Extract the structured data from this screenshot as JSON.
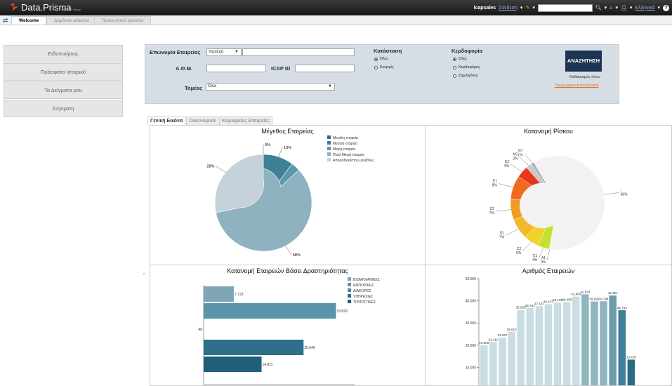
{
  "topbar": {
    "brand": "Data.Prisma",
    "brand_sub": "by ICAP Group",
    "user": "icapsales",
    "login_link": "Σύνδεση",
    "language_link": "Ελληνικά"
  },
  "page_tabs": [
    "Welcome",
    "Δημόσιοι φάκελοι",
    "Προσωπικοί φάκελοι"
  ],
  "sidebar": {
    "items": [
      {
        "label": "Ειδοποιήσεις"
      },
      {
        "label": "Πρόσφατο Ιστορικό"
      },
      {
        "label": "Τα Δείγματα μου"
      },
      {
        "label": "Σύγκριση"
      }
    ]
  },
  "filters": {
    "company_label": "Επωνυμία Εταιρείας",
    "company_mode": "περιέχει",
    "company_value": "",
    "afm_label": "Α.Φ.Μ.",
    "afm_value": "",
    "icapid_label": "ICAP ID",
    "icapid_value": "",
    "sector_label": "Τομέας",
    "sector_value": "Όλοι",
    "status_label": "Κατάσταση",
    "status_options": [
      "Όλες",
      "Ενεργές"
    ],
    "profit_label": "Κερδοφορία",
    "profit_options": [
      "Όλες",
      "Κερδοφόρες",
      "Ζημιογόνες"
    ],
    "search_button": "ΑΝΑΖΗΤΗΣΗ",
    "clear_all": "Καθαρισμός όλων",
    "advanced_search": "Προχωρημένη Αναζήτηση"
  },
  "dash_tabs": [
    "Γενική Εικόνα",
    "Οικονομικά",
    "Κορυφαίες Εταιρείες"
  ],
  "chart_data": [
    {
      "type": "pie",
      "title": "Μέγεθος Εταιρείας",
      "categories": [
        "Μεγάλη εταιρεία",
        "Μεσαία εταιρεία",
        "Μικρή εταιρεία",
        "Πολύ Μικρή εταιρεία",
        "Απροσδιορίστου μεγέθους"
      ],
      "values": [
        0,
        10,
        3,
        58,
        28
      ],
      "labels": [
        "0%",
        "10%",
        "",
        "58%",
        "28%"
      ],
      "colors": [
        "#2d6e8a",
        "#3f7f98",
        "#5d97ad",
        "#8fb2c1",
        "#c5d2d9"
      ],
      "legend": "right"
    },
    {
      "type": "pie",
      "title": "Κατανομή Ρίσκου",
      "categories": [
        "A1",
        "C1",
        "C2",
        "D1",
        "D2",
        "E1",
        "E2",
        "NC",
        "NT",
        "-"
      ],
      "values": [
        0,
        4,
        5,
        7,
        7,
        8,
        4,
        2,
        1,
        60
      ],
      "labels": [
        "A1\n0%",
        "C1\n4%",
        "C2\n5%",
        "D1\n7%",
        "D2\n7%",
        "E1\n8%",
        "E2\n4%",
        "NC\n2%",
        "NT\n1%",
        "-\n60%"
      ],
      "colors": [
        "#7ec82a",
        "#c6e030",
        "#f0d22a",
        "#f2b82a",
        "#f29a24",
        "#f06a1e",
        "#e8361c",
        "#c8c8c8",
        "#b0b0b0",
        "#f2f2f2"
      ]
    },
    {
      "type": "bar",
      "title": "Κατανομή Εταιρειών Βάσει Δραστηριότητας",
      "categories": [
        "ΒΙΟΜΗΧΑΝΙΚΕΣ",
        "ΕΜΠΟΡΙΚΕΣ",
        "ΔΙΑΦΟΡΕΣ",
        "ΥΠΗΡΕΣΙΕΣ",
        "ΤΟΥΡΙΣΤΙΚΕΣ"
      ],
      "values": [
        7723,
        33829,
        48,
        25546,
        14811
      ],
      "labels": [
        "7.723",
        "33.829",
        "48",
        "25.546",
        "14.811"
      ],
      "colors": [
        "#7fa6b8",
        "#5b93a8",
        "#4a8aa0",
        "#2f6f89",
        "#1f5f7a"
      ],
      "orientation": "horizontal",
      "legend": "right"
    },
    {
      "type": "bar",
      "title": "Αριθμός Εταιρειών",
      "values": [
        19909,
        21411,
        23367,
        26010,
        35853,
        36781,
        37537,
        38473,
        39189,
        39408,
        41864,
        42923,
        39691,
        39794,
        42401,
        35744,
        13478
      ],
      "labels": [
        "19.909",
        "21.411",
        "23.367",
        "26.010",
        "35.853",
        "36.781",
        "37.537",
        "38.473",
        "39.189",
        "39.408",
        "41.864",
        "42.923",
        "39.691",
        "39.794",
        "42.401",
        "35.744",
        "13.478"
      ],
      "ylim": [
        0,
        50000
      ],
      "yticks": [
        "10.000",
        "20.000",
        "30.000",
        "40.000",
        "50.000"
      ]
    }
  ]
}
